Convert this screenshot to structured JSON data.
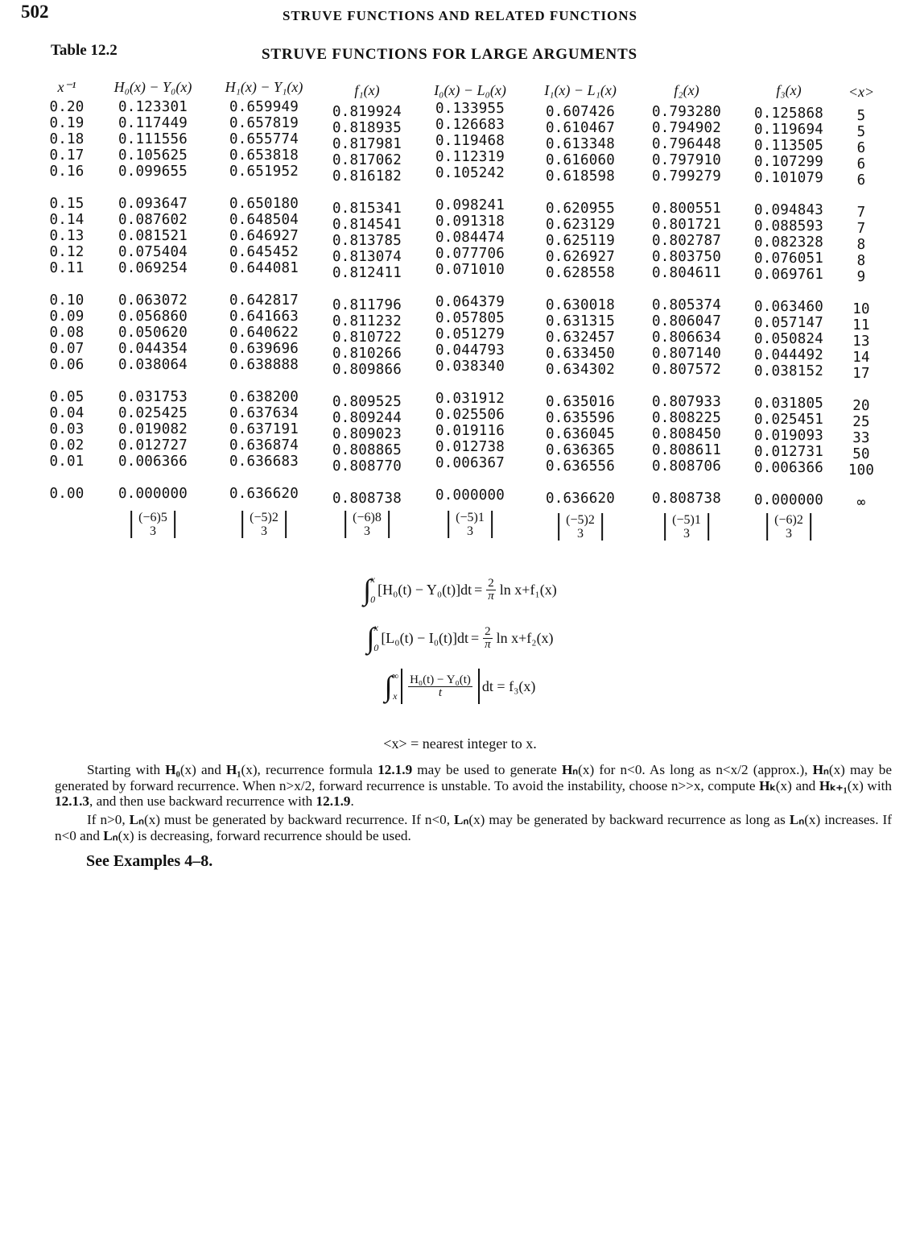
{
  "page": {
    "number": "502",
    "running_title": "STRUVE FUNCTIONS AND RELATED FUNCTIONS",
    "table_label": "Table 12.2",
    "table_title": "STRUVE FUNCTIONS FOR LARGE ARGUMENTS"
  },
  "table": {
    "headers": [
      "x⁻¹",
      "H₀(x) − Y₀(x)",
      "H₁(x) − Y₁(x)",
      "f₁(x)",
      "I₀(x) − L₀(x)",
      "I₁(x) − L₁(x)",
      "f₂(x)",
      "f₃(x)",
      "<x>"
    ],
    "rows": [
      [
        "0.20",
        "0.123301",
        "0.659949",
        "0.819924",
        "0.133955",
        "0.607426",
        "0.793280",
        "0.125868",
        "5"
      ],
      [
        "0.19",
        "0.117449",
        "0.657819",
        "0.818935",
        "0.126683",
        "0.610467",
        "0.794902",
        "0.119694",
        "5"
      ],
      [
        "0.18",
        "0.111556",
        "0.655774",
        "0.817981",
        "0.119468",
        "0.613348",
        "0.796448",
        "0.113505",
        "6"
      ],
      [
        "0.17",
        "0.105625",
        "0.653818",
        "0.817062",
        "0.112319",
        "0.616060",
        "0.797910",
        "0.107299",
        "6"
      ],
      [
        "0.16",
        "0.099655",
        "0.651952",
        "0.816182",
        "0.105242",
        "0.618598",
        "0.799279",
        "0.101079",
        "6"
      ],
      [
        "0.15",
        "0.093647",
        "0.650180",
        "0.815341",
        "0.098241",
        "0.620955",
        "0.800551",
        "0.094843",
        "7"
      ],
      [
        "0.14",
        "0.087602",
        "0.648504",
        "0.814541",
        "0.091318",
        "0.623129",
        "0.801721",
        "0.088593",
        "7"
      ],
      [
        "0.13",
        "0.081521",
        "0.646927",
        "0.813785",
        "0.084474",
        "0.625119",
        "0.802787",
        "0.082328",
        "8"
      ],
      [
        "0.12",
        "0.075404",
        "0.645452",
        "0.813074",
        "0.077706",
        "0.626927",
        "0.803750",
        "0.076051",
        "8"
      ],
      [
        "0.11",
        "0.069254",
        "0.644081",
        "0.812411",
        "0.071010",
        "0.628558",
        "0.804611",
        "0.069761",
        "9"
      ],
      [
        "0.10",
        "0.063072",
        "0.642817",
        "0.811796",
        "0.064379",
        "0.630018",
        "0.805374",
        "0.063460",
        "10"
      ],
      [
        "0.09",
        "0.056860",
        "0.641663",
        "0.811232",
        "0.057805",
        "0.631315",
        "0.806047",
        "0.057147",
        "11"
      ],
      [
        "0.08",
        "0.050620",
        "0.640622",
        "0.810722",
        "0.051279",
        "0.632457",
        "0.806634",
        "0.050824",
        "13"
      ],
      [
        "0.07",
        "0.044354",
        "0.639696",
        "0.810266",
        "0.044793",
        "0.633450",
        "0.807140",
        "0.044492",
        "14"
      ],
      [
        "0.06",
        "0.038064",
        "0.638888",
        "0.809866",
        "0.038340",
        "0.634302",
        "0.807572",
        "0.038152",
        "17"
      ],
      [
        "0.05",
        "0.031753",
        "0.638200",
        "0.809525",
        "0.031912",
        "0.635016",
        "0.807933",
        "0.031805",
        "20"
      ],
      [
        "0.04",
        "0.025425",
        "0.637634",
        "0.809244",
        "0.025506",
        "0.635596",
        "0.808225",
        "0.025451",
        "25"
      ],
      [
        "0.03",
        "0.019082",
        "0.637191",
        "0.809023",
        "0.019116",
        "0.636045",
        "0.808450",
        "0.019093",
        "33"
      ],
      [
        "0.02",
        "0.012727",
        "0.636874",
        "0.808865",
        "0.012738",
        "0.636365",
        "0.808611",
        "0.012731",
        "50"
      ],
      [
        "0.01",
        "0.006366",
        "0.636683",
        "0.808770",
        "0.006367",
        "0.636556",
        "0.808706",
        "0.006366",
        "100"
      ],
      [
        "0.00",
        "0.000000",
        "0.636620",
        "0.808738",
        "0.000000",
        "0.636620",
        "0.808738",
        "0.000000",
        "∞"
      ]
    ],
    "interpolation_notes": [
      {
        "top": "(−6)5",
        "bottom": "3"
      },
      {
        "top": "(−5)2",
        "bottom": "3"
      },
      {
        "top": "(−6)8",
        "bottom": "3"
      },
      {
        "top": "(−5)1",
        "bottom": "3"
      },
      {
        "top": "(−5)2",
        "bottom": "3"
      },
      {
        "top": "(−5)1",
        "bottom": "3"
      },
      {
        "top": "(−6)2",
        "bottom": "3"
      }
    ]
  },
  "formulas": [
    {
      "upper": "x",
      "lower": "0",
      "integrand": "[H₀(t) − Y₀(t)]dt",
      "equals": "=",
      "num": "2",
      "den": "π",
      "rest": "ln x+f₁(x)"
    },
    {
      "upper": "x",
      "lower": "0",
      "integrand": "[L₀(t) − I₀(t)]dt",
      "equals": "=",
      "num": "2",
      "den": "π",
      "rest": "ln x+f₂(x)"
    },
    {
      "upper": "∞",
      "lower": "x",
      "num": "H₀(t) − Y₀(t)",
      "den": "t",
      "rest": "dt = f₃(x)"
    }
  ],
  "nearest_note": "<x> = nearest integer to x.",
  "paragraphs": [
    [
      {
        "t": "Starting with "
      },
      {
        "t": "H₀",
        "b": true
      },
      {
        "t": "(x) and "
      },
      {
        "t": "H₁",
        "b": true
      },
      {
        "t": "(x), recurrence formula "
      },
      {
        "t": "12.1.9",
        "b": true
      },
      {
        "t": " may be used to generate "
      },
      {
        "t": "Hₙ",
        "b": true
      },
      {
        "t": "(x) for n<0.   As long as n<x/2 (approx.), "
      },
      {
        "t": "Hₙ",
        "b": true
      },
      {
        "t": "(x) may be generated by forward recurrence.   When n>x/2, forward recurrence is unstable.   To avoid the instability, choose n>>x, compute "
      },
      {
        "t": "Hₖ",
        "b": true
      },
      {
        "t": "(x) and "
      },
      {
        "t": "Hₖ₊₁",
        "b": true
      },
      {
        "t": "(x) with "
      },
      {
        "t": "12.1.3",
        "b": true
      },
      {
        "t": ", and then use backward recurrence with "
      },
      {
        "t": "12.1.9",
        "b": true
      },
      {
        "t": "."
      }
    ],
    [
      {
        "t": "If n>0, "
      },
      {
        "t": "Lₙ",
        "b": true
      },
      {
        "t": "(x) must be generated by backward recurrence.  If n<0, "
      },
      {
        "t": "Lₙ",
        "b": true
      },
      {
        "t": "(x) may be generated by backward recurrence as long as "
      },
      {
        "t": "Lₙ",
        "b": true
      },
      {
        "t": "(x) increases.   If n<0 and "
      },
      {
        "t": "Lₙ",
        "b": true
      },
      {
        "t": "(x) is decreasing, forward recurrence should be used."
      }
    ]
  ],
  "see_examples": "See Examples 4–8."
}
